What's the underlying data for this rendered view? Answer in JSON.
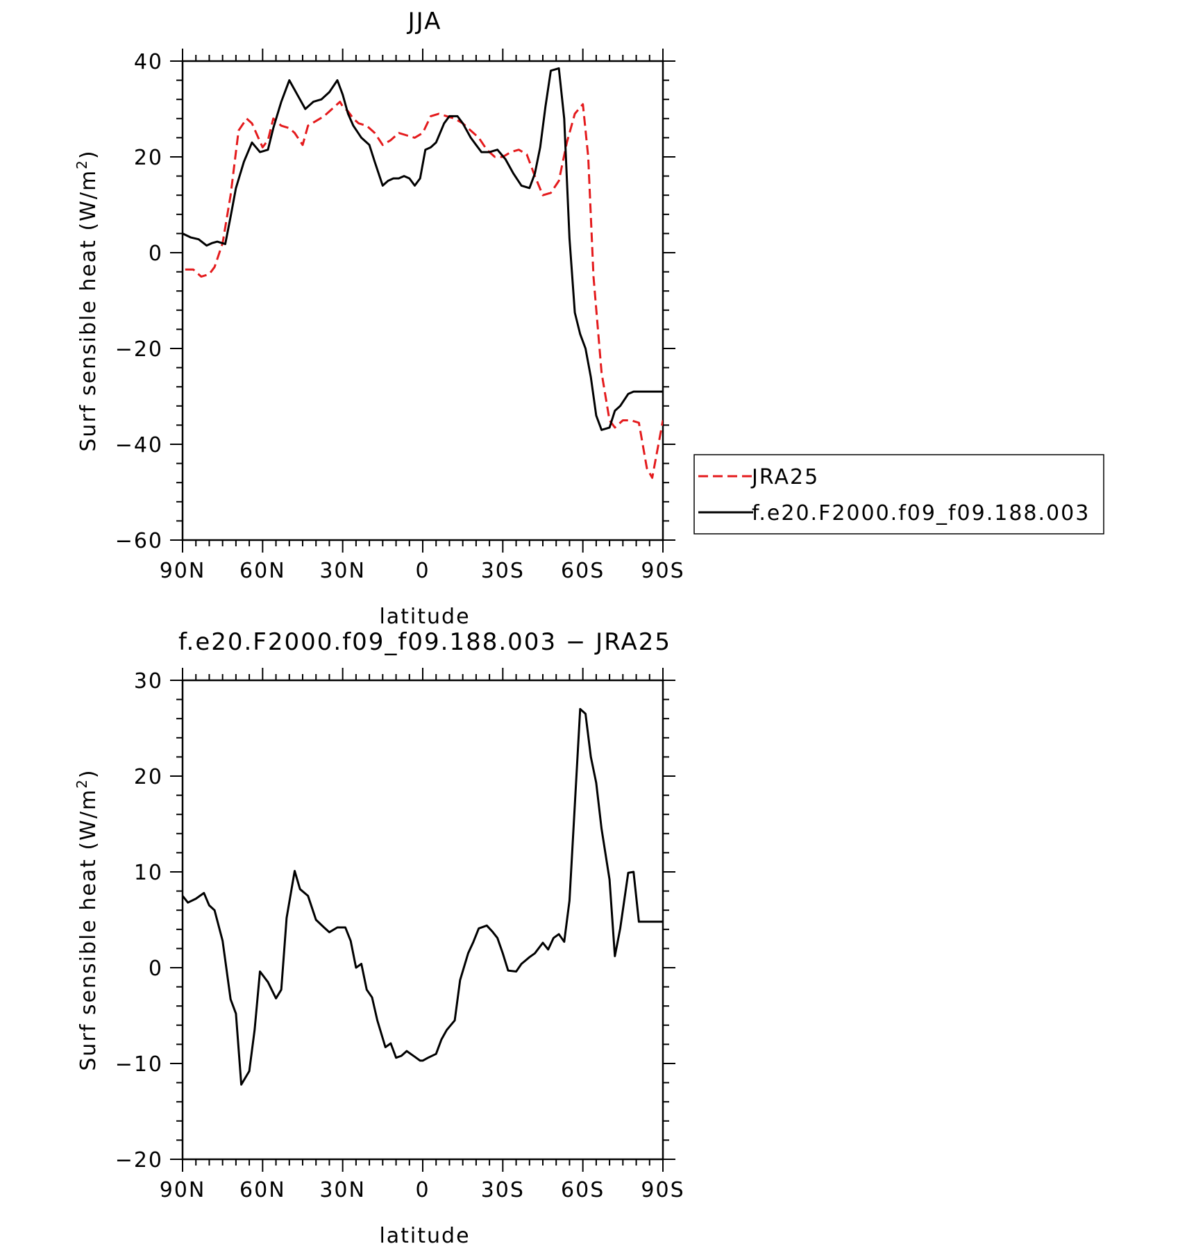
{
  "chart_data": [
    {
      "type": "line",
      "title": "JJA",
      "xlabel": "latitude",
      "ylabel": "Surf sensible heat (W/m^2)",
      "xlim": [
        -90,
        90
      ],
      "ylim": [
        -60,
        40
      ],
      "x_ticks": [
        {
          "value": -90,
          "label": "90N"
        },
        {
          "value": -60,
          "label": "60N"
        },
        {
          "value": -30,
          "label": "30N"
        },
        {
          "value": 0,
          "label": "0"
        },
        {
          "value": 30,
          "label": "30S"
        },
        {
          "value": 60,
          "label": "60S"
        },
        {
          "value": 90,
          "label": "90S"
        }
      ],
      "y_ticks": [
        -60,
        -40,
        -20,
        0,
        20,
        40
      ],
      "legend_position": "right",
      "grid": false,
      "series": [
        {
          "name": "JRA25",
          "color": "#e41a1c",
          "dash": "dashed",
          "x": [
            -89,
            -86,
            -83,
            -80,
            -78,
            -75,
            -72,
            -69,
            -66,
            -64,
            -62,
            -60,
            -58,
            -56,
            -53,
            -50,
            -48,
            -45,
            -43,
            -40,
            -37,
            -34,
            -31,
            -30,
            -28,
            -26,
            -24,
            -21,
            -18,
            -15,
            -12,
            -9,
            -6,
            -3,
            0,
            3,
            6,
            9,
            12,
            15,
            18,
            21,
            24,
            27,
            30,
            33,
            36,
            39,
            42,
            45,
            48,
            51,
            54,
            57,
            60,
            62,
            64,
            67,
            70,
            72,
            75,
            78,
            81,
            84,
            86,
            88,
            90
          ],
          "y": [
            -3.5,
            -3.5,
            -5,
            -4.5,
            -3,
            2,
            12,
            25.5,
            28,
            27,
            24.5,
            22,
            23.5,
            28,
            26.5,
            26,
            25,
            22.5,
            26.5,
            27.5,
            28.5,
            30,
            31.5,
            30.5,
            29.5,
            28,
            27,
            26.5,
            25,
            22.5,
            23.5,
            25,
            24.5,
            24,
            25,
            28.5,
            29,
            28.5,
            28,
            27,
            25.5,
            24,
            21.5,
            20,
            20,
            21,
            21.5,
            20.5,
            16,
            12,
            12.5,
            15,
            23,
            29,
            31,
            20,
            -5,
            -25,
            -35,
            -36.5,
            -35,
            -35,
            -35.5,
            -45,
            -47,
            -41,
            -35
          ]
        },
        {
          "name": "f.e20.F2000.f09_f09.188.003",
          "color": "#000000",
          "dash": "solid",
          "x": [
            -90,
            -87,
            -84,
            -81,
            -79,
            -77,
            -74,
            -72,
            -70,
            -67,
            -64,
            -61,
            -58,
            -56,
            -53,
            -50,
            -47,
            -44,
            -41,
            -38,
            -35,
            -32,
            -30,
            -28,
            -26,
            -23,
            -20,
            -18,
            -15,
            -13,
            -11,
            -9,
            -7,
            -5,
            -3,
            -1,
            1,
            3,
            5,
            8,
            10,
            13,
            15,
            18,
            20,
            22,
            25,
            28,
            31,
            34,
            37,
            40,
            42,
            44,
            46,
            48,
            51,
            53,
            55,
            57,
            59,
            61,
            63,
            65,
            67,
            70,
            72,
            74,
            77,
            79,
            81,
            83,
            85,
            87,
            89,
            90
          ],
          "y": [
            4,
            3.2,
            2.8,
            1.5,
            2,
            2.3,
            1.8,
            7.5,
            13.5,
            19,
            23,
            21,
            21.5,
            26,
            31.5,
            36,
            33,
            30,
            31.5,
            32,
            33.5,
            36,
            33,
            29,
            26.5,
            24,
            22.5,
            19,
            14,
            15,
            15.5,
            15.5,
            16,
            15.5,
            14,
            15.5,
            21.5,
            22,
            23,
            27,
            28.5,
            28.5,
            27,
            24,
            22.5,
            21,
            21,
            21.5,
            19.5,
            16.5,
            14,
            13.5,
            16.5,
            22,
            30.5,
            38,
            38.5,
            28,
            3,
            -12.5,
            -17,
            -20,
            -26,
            -34,
            -37,
            -36.5,
            -33,
            -32,
            -29.5,
            -29,
            -29,
            -29,
            -29,
            -29,
            -29,
            -29
          ]
        }
      ]
    },
    {
      "type": "line",
      "title": "f.e20.F2000.f09_f09.188.003 − JRA25",
      "xlabel": "latitude",
      "ylabel": "Surf sensible heat (W/m^2)",
      "xlim": [
        -90,
        90
      ],
      "ylim": [
        -20,
        30
      ],
      "x_ticks": [
        {
          "value": -90,
          "label": "90N"
        },
        {
          "value": -60,
          "label": "60N"
        },
        {
          "value": -30,
          "label": "30N"
        },
        {
          "value": 0,
          "label": "0"
        },
        {
          "value": 30,
          "label": "30S"
        },
        {
          "value": 60,
          "label": "60S"
        },
        {
          "value": 90,
          "label": "90S"
        }
      ],
      "y_ticks": [
        -20,
        -10,
        0,
        10,
        20,
        30
      ],
      "grid": false,
      "series": [
        {
          "color": "#000000",
          "dash": "solid",
          "x": [
            -90,
            -88,
            -85,
            -82,
            -80,
            -78,
            -75,
            -72,
            -70,
            -68,
            -65,
            -63,
            -61,
            -58,
            -55,
            -53,
            -51,
            -48,
            -46,
            -43,
            -40,
            -37,
            -35,
            -32,
            -29,
            -27,
            -25,
            -23,
            -21,
            -19,
            -17,
            -14,
            -12,
            -10,
            -8,
            -6,
            -3,
            -1,
            0,
            2,
            5,
            7,
            9,
            12,
            14,
            17,
            19,
            21,
            24,
            26,
            28,
            30,
            32,
            35,
            37,
            40,
            42,
            45,
            47,
            49,
            51,
            53,
            55,
            57,
            59,
            61,
            63,
            65,
            67,
            70,
            72,
            74,
            77,
            79,
            81,
            84,
            86,
            88,
            90
          ],
          "y": [
            7.5,
            6.8,
            7.2,
            7.8,
            6.5,
            6,
            2.8,
            -3.3,
            -4.8,
            -12.2,
            -10.8,
            -6.5,
            -0.4,
            -1.5,
            -3.2,
            -2.3,
            5.2,
            10.1,
            8.2,
            7.5,
            5,
            4.2,
            3.7,
            4.2,
            4.2,
            2.8,
            0,
            0.4,
            -2.3,
            -3.1,
            -5.5,
            -8.3,
            -7.9,
            -9.4,
            -9.2,
            -8.7,
            -9.3,
            -9.7,
            -9.7,
            -9.4,
            -9,
            -7.5,
            -6.5,
            -5.5,
            -1.3,
            1.5,
            2.7,
            4.1,
            4.4,
            3.8,
            3.1,
            1.5,
            -0.3,
            -0.4,
            0.4,
            1.1,
            1.5,
            2.6,
            1.9,
            3.1,
            3.5,
            2.7,
            7,
            17,
            27,
            26.5,
            22,
            19.3,
            14.5,
            9.2,
            1.2,
            4.1,
            9.9,
            10,
            4.8,
            4.8,
            4.8,
            4.8,
            4.8
          ]
        }
      ]
    }
  ]
}
